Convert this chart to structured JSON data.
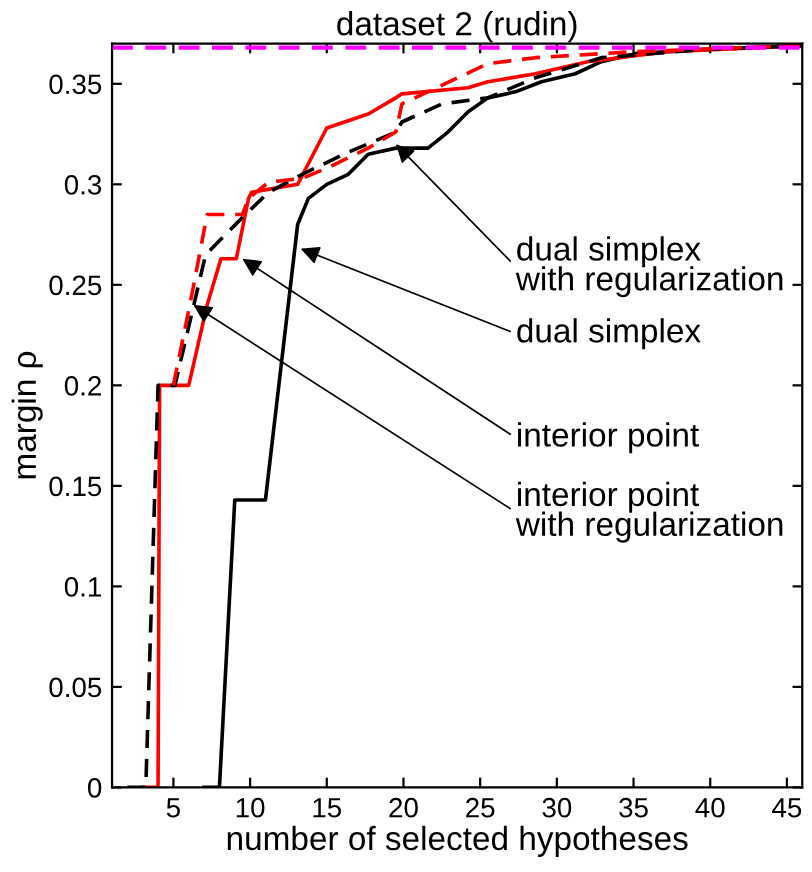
{
  "chart_data": {
    "type": "line",
    "title": "dataset 2 (rudin)",
    "xlabel": "number of selected hypotheses",
    "ylabel": "margin ρ",
    "xlim": [
      1,
      46
    ],
    "ylim": [
      0,
      0.37
    ],
    "xticks": [
      5,
      10,
      15,
      20,
      25,
      30,
      35,
      40,
      45
    ],
    "yticks": [
      0,
      0.05,
      0.1,
      0.15,
      0.2,
      0.25,
      0.3,
      0.35
    ],
    "grid": false,
    "legend": false,
    "series": [
      {
        "color": "#000000",
        "line_style": "solid",
        "x": [
          7,
          8,
          9,
          11,
          13.1,
          13.8,
          15,
          16.4,
          17.7,
          19.5,
          21.6,
          22.9,
          24.2,
          25.5,
          27.3,
          29,
          31.2,
          32.9,
          35.1,
          39.4,
          46
        ],
        "values": [
          0,
          0,
          0.143,
          0.143,
          0.28,
          0.293,
          0.3,
          0.305,
          0.315,
          0.318,
          0.318,
          0.326,
          0.336,
          0.343,
          0.346,
          0.351,
          0.355,
          0.361,
          0.365,
          0.367,
          0.369
        ]
      },
      {
        "color": "#ff0000",
        "line_style": "solid",
        "x": [
          3,
          4,
          4.1,
          5,
          6,
          7.2,
          8.1,
          9.1,
          9.9,
          10.1,
          13.1,
          15,
          17.7,
          19.5,
          19.9,
          24.2,
          25.5,
          28.6,
          32,
          37.2,
          46
        ],
        "values": [
          0,
          0,
          0.2,
          0.2,
          0.2,
          0.24,
          0.263,
          0.263,
          0.293,
          0.296,
          0.3,
          0.328,
          0.335,
          0.343,
          0.345,
          0.348,
          0.351,
          0.355,
          0.361,
          0.366,
          0.369
        ]
      },
      {
        "color": "#000000",
        "line_style": "dashed",
        "x": [
          2,
          3.2,
          4,
          5.1,
          7.1,
          9.7,
          11.2,
          13.4,
          16.4,
          19.5,
          19.9,
          22.5,
          25.5,
          28.6,
          32.9,
          39.4,
          46
        ],
        "values": [
          0,
          0,
          0.2,
          0.2,
          0.265,
          0.285,
          0.296,
          0.305,
          0.316,
          0.326,
          0.331,
          0.34,
          0.343,
          0.353,
          0.363,
          0.367,
          0.369
        ]
      },
      {
        "color": "#ff0000",
        "line_style": "dashed",
        "x": [
          5,
          6.2,
          7.2,
          9.5,
          9.9,
          11.2,
          13.4,
          15,
          17.7,
          19.5,
          19.9,
          25.5,
          28.6,
          35,
          46
        ],
        "values": [
          0.2,
          0.245,
          0.285,
          0.285,
          0.293,
          0.301,
          0.303,
          0.308,
          0.318,
          0.326,
          0.34,
          0.36,
          0.363,
          0.366,
          0.369
        ]
      }
    ],
    "ref_lines": [
      {
        "axis": "y",
        "value": 0.368,
        "color": "#ff00ff",
        "line_style": "dashed"
      }
    ],
    "annotations": [
      {
        "text": "dual simplex\nwith regularization",
        "x": 19.5,
        "y": 0.32
      },
      {
        "text": "dual simplex",
        "x": 13.3,
        "y": 0.268
      },
      {
        "text": "interior point",
        "x": 9.5,
        "y": 0.263
      },
      {
        "text": "interior point\nwith regularization",
        "x": 6.3,
        "y": 0.24
      }
    ]
  }
}
